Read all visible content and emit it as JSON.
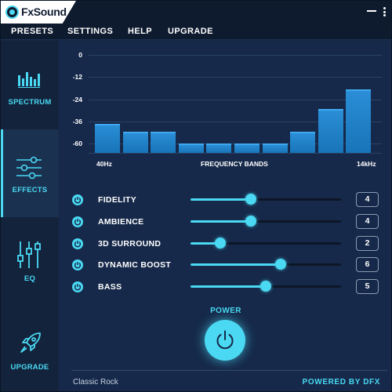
{
  "app": {
    "title": "FxSound"
  },
  "menu": {
    "items": [
      "PRESETS",
      "SETTINGS",
      "HELP",
      "UPGRADE"
    ]
  },
  "sidebar": {
    "items": [
      {
        "label": "SPECTRUM",
        "icon": "spectrum-icon",
        "active": false
      },
      {
        "label": "EFFECTS",
        "icon": "sliders-icon",
        "active": true
      },
      {
        "label": "EQ",
        "icon": "eq-icon",
        "active": false
      },
      {
        "label": "UPGRADE",
        "icon": "rocket-icon",
        "active": false
      }
    ]
  },
  "spectrum": {
    "db_labels": [
      "0",
      "-12",
      "-24",
      "-36",
      "-60"
    ],
    "freq_start": "40Hz",
    "freq_title": "FREQUENCY BANDS",
    "freq_end": "14kHz"
  },
  "chart_data": {
    "type": "bar",
    "categories": [
      "",
      "",
      "",
      "",
      "",
      "",
      "",
      "",
      "",
      ""
    ],
    "values": [
      -42,
      -47,
      -47,
      -54,
      -54,
      -54,
      -54,
      -47,
      -33,
      -21
    ],
    "ylim": [
      -60,
      0
    ],
    "yticks": [
      "0",
      "-12",
      "-24",
      "-36",
      "-60"
    ],
    "xlabel": "FREQUENCY BANDS",
    "grid": true
  },
  "effects": [
    {
      "name": "FIDELITY",
      "value": "4",
      "level": 0.4
    },
    {
      "name": "AMBIENCE",
      "value": "4",
      "level": 0.4
    },
    {
      "name": "3D SURROUND",
      "value": "2",
      "level": 0.2
    },
    {
      "name": "DYNAMIC BOOST",
      "value": "6",
      "level": 0.6
    },
    {
      "name": "BASS",
      "value": "5",
      "level": 0.5
    }
  ],
  "power": {
    "label": "POWER"
  },
  "footer": {
    "preset": "Classic Rock",
    "powered_by": "POWERED BY DFX"
  },
  "colors": {
    "accent": "#4ad8f2",
    "bar": "#1f82c8",
    "background": "#16294a"
  }
}
